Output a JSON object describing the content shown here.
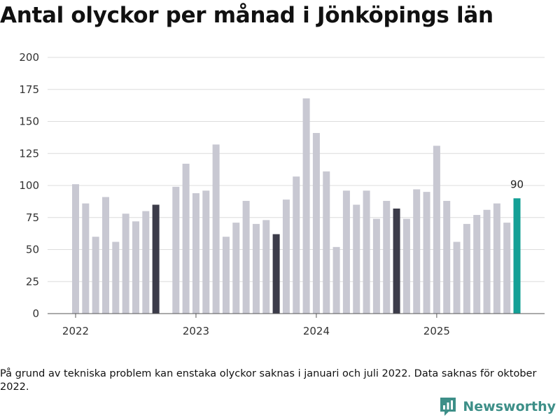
{
  "chart_data": {
    "type": "bar",
    "title": "Antal olyckor per månad i Jönköpings län",
    "xlabel": "",
    "ylabel": "",
    "ylim": [
      0,
      200
    ],
    "yticks": [
      0,
      25,
      50,
      75,
      100,
      125,
      150,
      175,
      200
    ],
    "xticks": [
      {
        "label": "2022",
        "slot": 0
      },
      {
        "label": "2023",
        "slot": 12
      },
      {
        "label": "2024",
        "slot": 24
      },
      {
        "label": "2025",
        "slot": 36
      }
    ],
    "months": [
      "2022-01",
      "2022-02",
      "2022-03",
      "2022-04",
      "2022-05",
      "2022-06",
      "2022-07",
      "2022-08",
      "2022-09",
      "2022-10",
      "2022-11",
      "2022-12",
      "2023-01",
      "2023-02",
      "2023-03",
      "2023-04",
      "2023-05",
      "2023-06",
      "2023-07",
      "2023-08",
      "2023-09",
      "2023-10",
      "2023-11",
      "2023-12",
      "2024-01",
      "2024-02",
      "2024-03",
      "2024-04",
      "2024-05",
      "2024-06",
      "2024-07",
      "2024-08",
      "2024-09",
      "2024-10",
      "2024-11",
      "2024-12",
      "2025-01",
      "2025-02",
      "2025-03",
      "2025-04",
      "2025-05",
      "2025-06",
      "2025-07",
      "2025-08",
      "2025-09"
    ],
    "values": [
      101,
      86,
      60,
      91,
      56,
      78,
      72,
      80,
      85,
      null,
      99,
      117,
      94,
      96,
      132,
      60,
      71,
      88,
      70,
      73,
      62,
      89,
      107,
      168,
      141,
      111,
      52,
      96,
      85,
      96,
      74,
      88,
      82,
      74,
      97,
      95,
      131,
      88,
      56,
      70,
      77,
      81,
      86,
      71,
      90
    ],
    "highlight_indices": [
      8,
      20,
      32
    ],
    "latest_index": 44,
    "data_labels": [
      {
        "index": 44,
        "text": "90"
      }
    ],
    "colors": {
      "default": "#c8c8d2",
      "highlight": "#3c3c4a",
      "latest": "#14a096",
      "grid": "#dcdcdc",
      "axis": "#555555"
    }
  },
  "footnote": "På grund av tekniska problem kan enstaka olyckor saknas i januari och juli 2022. Data saknas för oktober 2022.",
  "brand": {
    "name": "Newsworthy",
    "color": "#3d8f88",
    "icon": "newsworthy-logo-icon"
  }
}
